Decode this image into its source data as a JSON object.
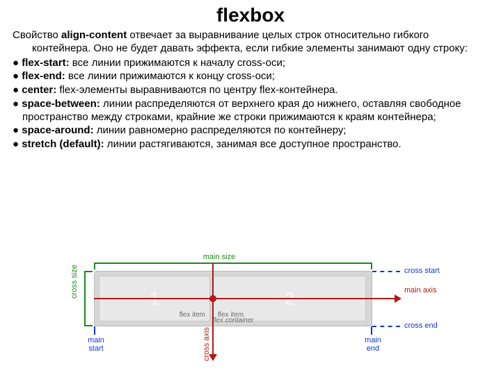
{
  "title": "flexbox",
  "intro": {
    "prop": "align-content",
    "lead": "Свойство ",
    "rest": " отвечает за выравнивание целых строк относительно гибкого контейнера. Оно не будет давать эффекта, если гибкие элементы занимают одну строку:"
  },
  "items": [
    {
      "key": "flex-start:",
      "desc": " все линии прижимаются к началу cross-оси;"
    },
    {
      "key": "flex-end:",
      "desc": " все линии прижимаются к концу cross-оси;"
    },
    {
      "key": "center:",
      "desc": " flex-элементы выравниваются по центру flex-контейнера."
    },
    {
      "key": "space-between:",
      "desc": " линии распределяются от верхнего края до нижнего, оставляя свободное пространство между строками, крайние же строки прижимаются к краям контейнера;"
    },
    {
      "key": "space-around:",
      "desc": " линии равномерно распределяются по контейнеру;"
    },
    {
      "key": "stretch (default):",
      "desc": " линии растягиваются, занимая все доступное пространство."
    }
  ],
  "diagram": {
    "main_size": "main size",
    "cross_size": "cross size",
    "main_axis": "main axis",
    "cross_axis": "cross axis",
    "cross_start": "cross start",
    "cross_end": "cross end",
    "main_start": "main start",
    "main_end": "main end",
    "item1": "1",
    "item2": "2",
    "flex_item": "flex item",
    "flex_container": "flex container",
    "colors": {
      "green": "#1a8a1a",
      "red": "#b01818",
      "blue": "#1434c8",
      "container_bg": "#d6d6d6",
      "item_bg": "#e8e8e8"
    }
  }
}
